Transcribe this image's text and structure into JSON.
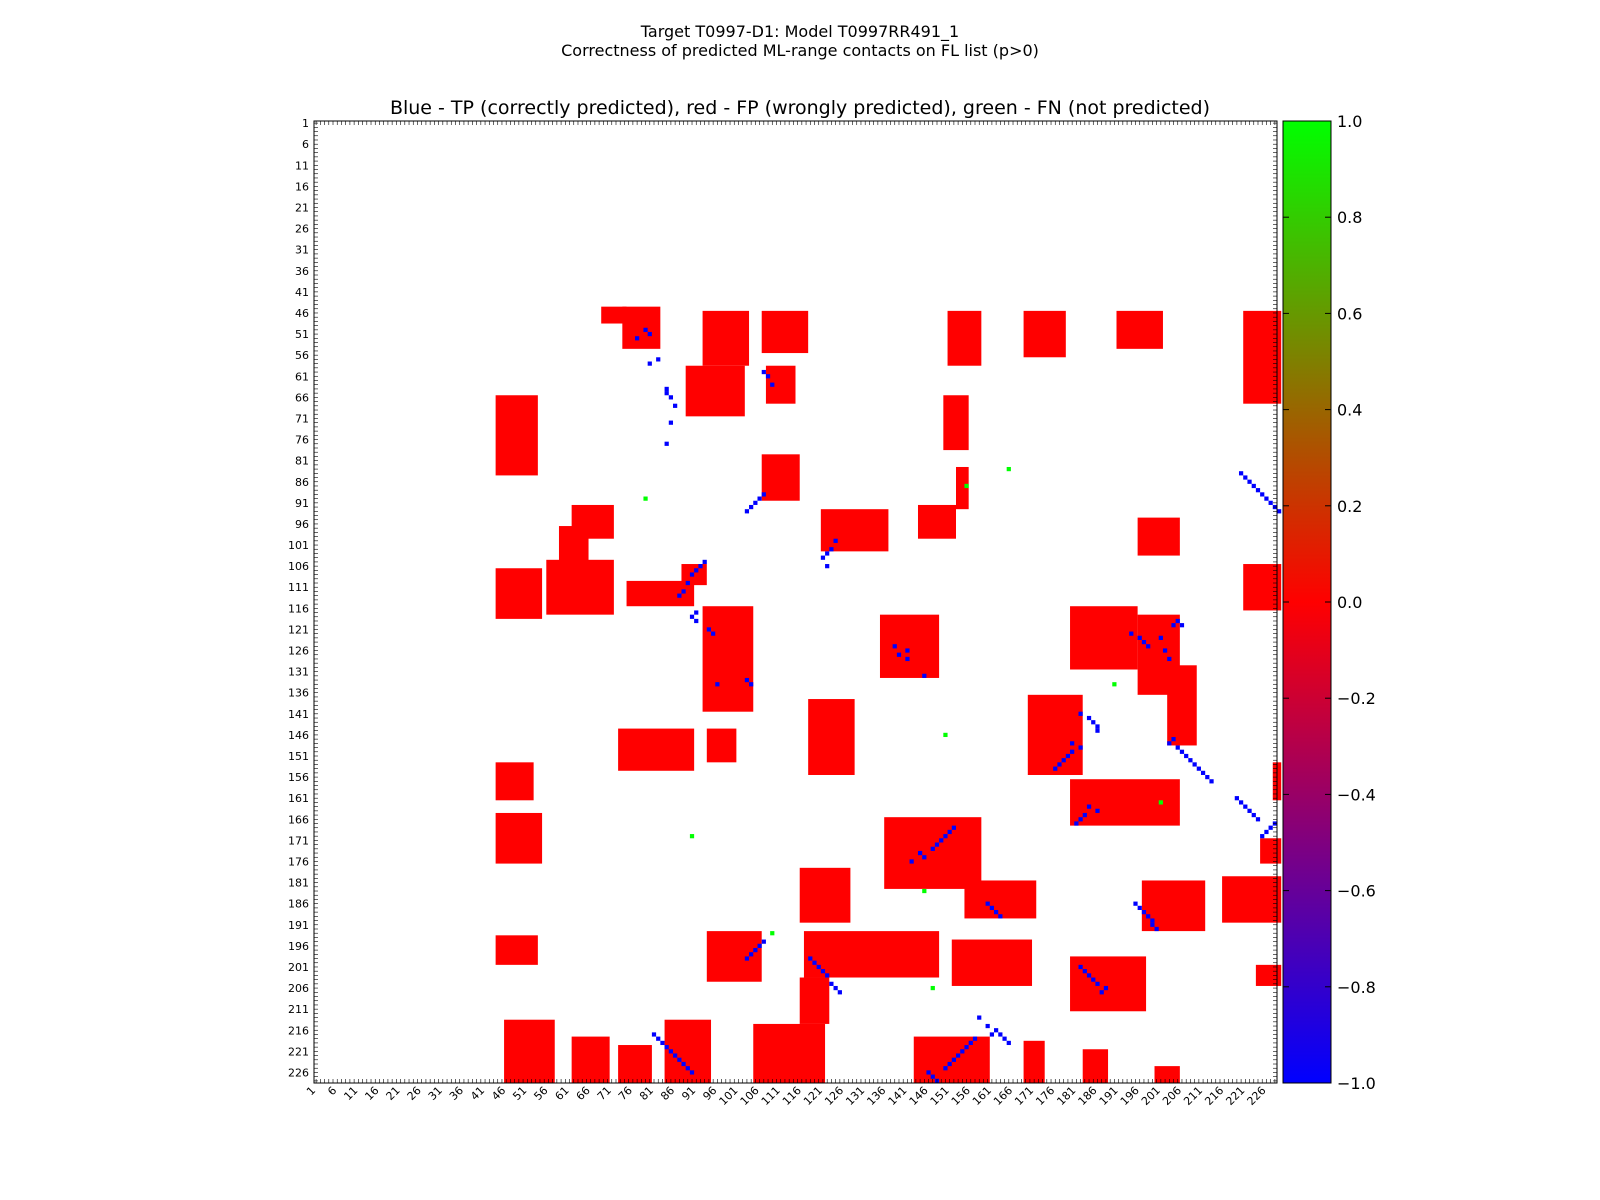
{
  "figure": {
    "title_line1": "Target T0997-D1: Model T0997RR491_1",
    "title_line2": "Correctness of predicted ML-range contacts on FL list (p>0)"
  },
  "chart_data": {
    "type": "heatmap",
    "title": "Blue - TP (correctly predicted), red - FP (wrongly predicted), green - FN (not predicted)",
    "xlabel": "",
    "ylabel": "",
    "residue_range": [
      1,
      228
    ],
    "x_ticks": [
      "1",
      "6",
      "11",
      "16",
      "21",
      "26",
      "31",
      "36",
      "41",
      "46",
      "51",
      "56",
      "61",
      "66",
      "71",
      "76",
      "81",
      "86",
      "91",
      "96",
      "101",
      "106",
      "111",
      "116",
      "121",
      "126",
      "131",
      "136",
      "141",
      "146",
      "151",
      "156",
      "161",
      "166",
      "171",
      "176",
      "181",
      "186",
      "191",
      "196",
      "201",
      "206",
      "211",
      "216",
      "221",
      "226"
    ],
    "y_ticks": [
      "1",
      "6",
      "11",
      "16",
      "21",
      "26",
      "31",
      "36",
      "41",
      "46",
      "51",
      "56",
      "61",
      "66",
      "71",
      "76",
      "81",
      "86",
      "91",
      "96",
      "101",
      "106",
      "111",
      "116",
      "121",
      "126",
      "131",
      "136",
      "141",
      "146",
      "151",
      "156",
      "161",
      "166",
      "171",
      "176",
      "181",
      "186",
      "191",
      "196",
      "201",
      "206",
      "211",
      "216",
      "221",
      "226"
    ],
    "y_inverted": true,
    "grid": false,
    "colors": {
      "TP": "#0000ff",
      "FP": "#ff0000",
      "FN": "#00ff00"
    },
    "value_codes": {
      "TP": -1.0,
      "FP": 0.0,
      "FN": 1.0
    },
    "colorbar": {
      "range": [
        -1.0,
        1.0
      ],
      "ticks": [
        "1.0",
        "0.8",
        "0.6",
        "0.4",
        "0.2",
        "0.0",
        "−0.2",
        "−0.4",
        "−0.6",
        "−0.8",
        "−1.0"
      ],
      "colors": [
        "#0000ff",
        "#ff0000",
        "#00ff00"
      ]
    },
    "fp_blocks": [
      [
        45,
        48,
        69,
        74
      ],
      [
        45,
        54,
        74,
        82
      ],
      [
        46,
        58,
        93,
        103
      ],
      [
        46,
        55,
        107,
        117
      ],
      [
        46,
        58,
        151,
        158
      ],
      [
        46,
        56,
        169,
        178
      ],
      [
        46,
        54,
        191,
        201
      ],
      [
        46,
        67,
        221,
        229
      ],
      [
        59,
        70,
        89,
        102
      ],
      [
        59,
        67,
        108,
        114
      ],
      [
        66,
        84,
        44,
        53
      ],
      [
        80,
        90,
        107,
        115
      ],
      [
        66,
        78,
        150,
        155
      ],
      [
        83,
        92,
        153,
        155
      ],
      [
        92,
        99,
        62,
        71
      ],
      [
        93,
        102,
        121,
        136
      ],
      [
        92,
        99,
        144,
        152
      ],
      [
        95,
        103,
        196,
        205
      ],
      [
        97,
        107,
        59,
        65
      ],
      [
        106,
        110,
        88,
        93
      ],
      [
        107,
        118,
        44,
        54
      ],
      [
        105,
        117,
        56,
        71
      ],
      [
        110,
        115,
        75,
        90
      ],
      [
        106,
        116,
        221,
        229
      ],
      [
        116,
        140,
        93,
        104
      ],
      [
        118,
        132,
        135,
        148
      ],
      [
        116,
        130,
        180,
        195
      ],
      [
        118,
        136,
        196,
        205
      ],
      [
        130,
        148,
        203,
        209
      ],
      [
        138,
        155,
        118,
        128
      ],
      [
        137,
        155,
        170,
        182
      ],
      [
        145,
        154,
        73,
        90
      ],
      [
        145,
        152,
        94,
        100
      ],
      [
        153,
        161,
        44,
        52
      ],
      [
        153,
        161,
        228,
        229
      ],
      [
        157,
        167,
        180,
        205
      ],
      [
        165,
        176,
        44,
        54
      ],
      [
        166,
        182,
        136,
        158
      ],
      [
        171,
        176,
        225,
        229
      ],
      [
        181,
        189,
        155,
        171
      ],
      [
        178,
        190,
        116,
        127
      ],
      [
        180,
        190,
        216,
        229
      ],
      [
        181,
        192,
        197,
        211
      ],
      [
        193,
        204,
        94,
        106
      ],
      [
        193,
        203,
        117,
        148
      ],
      [
        195,
        205,
        152,
        170
      ],
      [
        194,
        200,
        44,
        53
      ],
      [
        199,
        211,
        180,
        197
      ],
      [
        201,
        205,
        224,
        229
      ],
      [
        204,
        214,
        116,
        122
      ],
      [
        215,
        228,
        105,
        121
      ],
      [
        214,
        228,
        46,
        57
      ],
      [
        218,
        228,
        62,
        70
      ],
      [
        220,
        228,
        73,
        80
      ],
      [
        214,
        228,
        84,
        94
      ],
      [
        218,
        228,
        143,
        160
      ],
      [
        219,
        228,
        169,
        173
      ],
      [
        221,
        228,
        183,
        188
      ],
      [
        225,
        228,
        200,
        205
      ]
    ],
    "tp_cells": [
      [
        50,
        79
      ],
      [
        52,
        77
      ],
      [
        51,
        80
      ],
      [
        57,
        82
      ],
      [
        58,
        80
      ],
      [
        64,
        84
      ],
      [
        65,
        84
      ],
      [
        60,
        107
      ],
      [
        61,
        108
      ],
      [
        63,
        109
      ],
      [
        66,
        85
      ],
      [
        68,
        86
      ],
      [
        72,
        85
      ],
      [
        77,
        84
      ],
      [
        89,
        107
      ],
      [
        90,
        106
      ],
      [
        91,
        105
      ],
      [
        92,
        104
      ],
      [
        93,
        103
      ],
      [
        100,
        124
      ],
      [
        102,
        123
      ],
      [
        103,
        122
      ],
      [
        104,
        121
      ],
      [
        106,
        122
      ],
      [
        105,
        93
      ],
      [
        106,
        92
      ],
      [
        107,
        91
      ],
      [
        108,
        90
      ],
      [
        110,
        89
      ],
      [
        112,
        88
      ],
      [
        113,
        87
      ],
      [
        117,
        91
      ],
      [
        118,
        90
      ],
      [
        119,
        91
      ],
      [
        121,
        94
      ],
      [
        122,
        95
      ],
      [
        125,
        138
      ],
      [
        127,
        139
      ],
      [
        128,
        141
      ],
      [
        126,
        141
      ],
      [
        133,
        103
      ],
      [
        134,
        104
      ],
      [
        134,
        96
      ],
      [
        132,
        145
      ],
      [
        122,
        194
      ],
      [
        123,
        196
      ],
      [
        124,
        197
      ],
      [
        125,
        198
      ],
      [
        123,
        201
      ],
      [
        126,
        202
      ],
      [
        128,
        203
      ],
      [
        120,
        204
      ],
      [
        119,
        205
      ],
      [
        120,
        206
      ],
      [
        141,
        182
      ],
      [
        142,
        184
      ],
      [
        143,
        185
      ],
      [
        144,
        186
      ],
      [
        145,
        186
      ],
      [
        148,
        180
      ],
      [
        149,
        182
      ],
      [
        150,
        180
      ],
      [
        151,
        179
      ],
      [
        152,
        178
      ],
      [
        153,
        177
      ],
      [
        154,
        176
      ],
      [
        148,
        203
      ],
      [
        147,
        204
      ],
      [
        149,
        205
      ],
      [
        150,
        206
      ],
      [
        151,
        207
      ],
      [
        152,
        208
      ],
      [
        153,
        209
      ],
      [
        154,
        210
      ],
      [
        155,
        211
      ],
      [
        156,
        212
      ],
      [
        157,
        213
      ],
      [
        163,
        184
      ],
      [
        165,
        183
      ],
      [
        166,
        182
      ],
      [
        167,
        181
      ],
      [
        164,
        186
      ],
      [
        168,
        152
      ],
      [
        169,
        151
      ],
      [
        170,
        150
      ],
      [
        171,
        149
      ],
      [
        172,
        148
      ],
      [
        173,
        147
      ],
      [
        174,
        144
      ],
      [
        175,
        145
      ],
      [
        176,
        142
      ],
      [
        186,
        160
      ],
      [
        187,
        161
      ],
      [
        188,
        162
      ],
      [
        189,
        163
      ],
      [
        186,
        195
      ],
      [
        187,
        196
      ],
      [
        188,
        197
      ],
      [
        189,
        198
      ],
      [
        190,
        199
      ],
      [
        191,
        199
      ],
      [
        192,
        200
      ],
      [
        195,
        107
      ],
      [
        196,
        106
      ],
      [
        197,
        105
      ],
      [
        198,
        104
      ],
      [
        199,
        103
      ],
      [
        199,
        118
      ],
      [
        200,
        119
      ],
      [
        201,
        120
      ],
      [
        202,
        121
      ],
      [
        203,
        122
      ],
      [
        205,
        123
      ],
      [
        206,
        124
      ],
      [
        207,
        125
      ],
      [
        201,
        182
      ],
      [
        202,
        183
      ],
      [
        203,
        184
      ],
      [
        204,
        185
      ],
      [
        205,
        186
      ],
      [
        206,
        188
      ],
      [
        207,
        187
      ],
      [
        217,
        81
      ],
      [
        218,
        82
      ],
      [
        219,
        83
      ],
      [
        220,
        84
      ],
      [
        221,
        85
      ],
      [
        222,
        86
      ],
      [
        223,
        87
      ],
      [
        224,
        88
      ],
      [
        225,
        89
      ],
      [
        226,
        90
      ],
      [
        225,
        150
      ],
      [
        224,
        151
      ],
      [
        223,
        152
      ],
      [
        222,
        153
      ],
      [
        221,
        154
      ],
      [
        220,
        155
      ],
      [
        219,
        156
      ],
      [
        218,
        157
      ],
      [
        226,
        146
      ],
      [
        227,
        147
      ],
      [
        228,
        148
      ],
      [
        213,
        158
      ],
      [
        215,
        160
      ],
      [
        216,
        162
      ],
      [
        217,
        161
      ],
      [
        217,
        163
      ],
      [
        218,
        164
      ],
      [
        219,
        165
      ],
      [
        84,
        220
      ],
      [
        85,
        221
      ],
      [
        86,
        222
      ],
      [
        87,
        223
      ],
      [
        88,
        224
      ],
      [
        89,
        225
      ],
      [
        90,
        226
      ],
      [
        91,
        227
      ],
      [
        92,
        228
      ],
      [
        93,
        229
      ],
      [
        170,
        225
      ],
      [
        169,
        226
      ],
      [
        168,
        227
      ],
      [
        167,
        228
      ],
      [
        161,
        219
      ],
      [
        162,
        220
      ],
      [
        163,
        221
      ],
      [
        164,
        222
      ],
      [
        165,
        223
      ],
      [
        166,
        224
      ]
    ],
    "fn_cells": [
      [
        83,
        165
      ],
      [
        87,
        155
      ],
      [
        90,
        79
      ],
      [
        170,
        90
      ],
      [
        193,
        109
      ],
      [
        206,
        147
      ],
      [
        162,
        201
      ],
      [
        183,
        145
      ],
      [
        146,
        150
      ],
      [
        134,
        190
      ]
    ]
  }
}
